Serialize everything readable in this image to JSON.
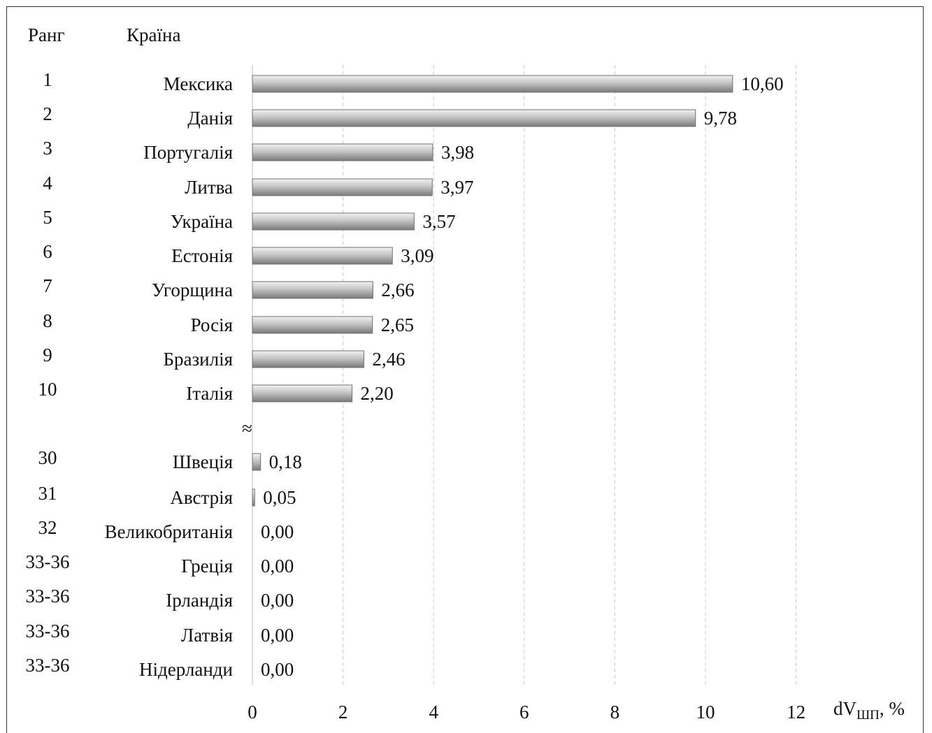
{
  "chart_data": {
    "type": "bar",
    "orientation": "horizontal",
    "headers": {
      "rank": "Ранг",
      "country": "Країна"
    },
    "rows": [
      {
        "rank": "1",
        "country": "Мексика",
        "value": 10.6,
        "label": "10,60"
      },
      {
        "rank": "2",
        "country": "Данія",
        "value": 9.78,
        "label": "9,78"
      },
      {
        "rank": "3",
        "country": "Португалія",
        "value": 3.98,
        "label": "3,98"
      },
      {
        "rank": "4",
        "country": "Литва",
        "value": 3.97,
        "label": "3,97"
      },
      {
        "rank": "5",
        "country": "Україна",
        "value": 3.57,
        "label": "3,57"
      },
      {
        "rank": "6",
        "country": "Естонія",
        "value": 3.09,
        "label": "3,09"
      },
      {
        "rank": "7",
        "country": "Угорщина",
        "value": 2.66,
        "label": "2,66"
      },
      {
        "rank": "8",
        "country": "Росія",
        "value": 2.65,
        "label": "2,65"
      },
      {
        "rank": "9",
        "country": "Бразилія",
        "value": 2.46,
        "label": "2,46"
      },
      {
        "rank": "10",
        "country": "Італія",
        "value": 2.2,
        "label": "2,20"
      },
      {
        "rank": "30",
        "country": "Швеція",
        "value": 0.18,
        "label": "0,18"
      },
      {
        "rank": "31",
        "country": "Австрія",
        "value": 0.05,
        "label": "0,05"
      },
      {
        "rank": "32",
        "country": "Великобританія",
        "value": 0.0,
        "label": "0,00"
      },
      {
        "rank": "33-36",
        "country": "Греція",
        "value": 0.0,
        "label": "0,00"
      },
      {
        "rank": "33-36",
        "country": "Ірландія",
        "value": 0.0,
        "label": "0,00"
      },
      {
        "rank": "33-36",
        "country": "Латвія",
        "value": 0.0,
        "label": "0,00"
      },
      {
        "rank": "33-36",
        "country": "Нідерланди",
        "value": 0.0,
        "label": "0,00"
      }
    ],
    "break_symbol": "≈",
    "x_ticks": [
      "0",
      "2",
      "4",
      "6",
      "8",
      "10",
      "12"
    ],
    "xlim": [
      0,
      12
    ],
    "xlabel": {
      "main": "dV",
      "subscript": "ШП",
      "suffix": ", %"
    },
    "grid": "vertical dashed",
    "bar_color": "#9a9a9a"
  }
}
